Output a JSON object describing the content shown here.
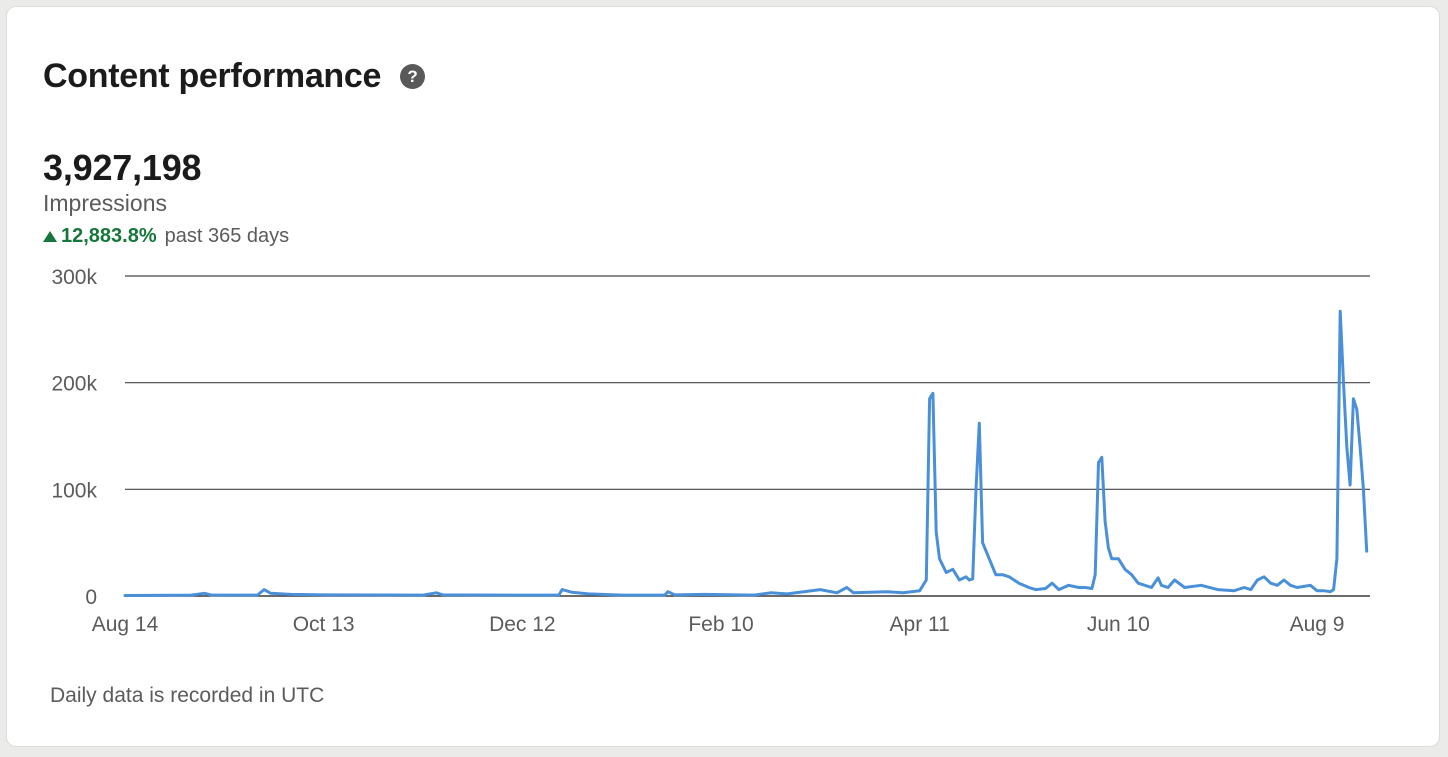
{
  "card": {
    "title": "Content performance",
    "help_icon": "help-circle-icon",
    "metric_value": "3,927,198",
    "metric_label": "Impressions",
    "change_value": "12,883.8%",
    "change_period": "past 365 days",
    "change_direction_icon": "triangle-up-icon",
    "footnote": "Daily data is recorded in UTC"
  },
  "colors": {
    "line": "#4a90d9",
    "positive": "#16773a",
    "grid": "#2e2e2e",
    "muted_text": "#5b5b5b"
  },
  "chart_data": {
    "type": "line",
    "title": "",
    "xlabel": "",
    "ylabel": "",
    "ylim": [
      0,
      300000
    ],
    "grid": true,
    "y_ticks": [
      {
        "value": 300000,
        "label": "300k"
      },
      {
        "value": 200000,
        "label": "200k"
      },
      {
        "value": 100000,
        "label": "100k"
      },
      {
        "value": 0,
        "label": "0"
      }
    ],
    "x_ticks": [
      "Aug 14",
      "Oct 13",
      "Dec 12",
      "Feb 10",
      "Apr 11",
      "Jun 10",
      "Aug 9"
    ],
    "x_tick_days": [
      0,
      60,
      120,
      180,
      240,
      300,
      360
    ],
    "series": [
      {
        "name": "",
        "points": [
          [
            0,
            500
          ],
          [
            20,
            800
          ],
          [
            24,
            2500
          ],
          [
            26,
            900
          ],
          [
            40,
            800
          ],
          [
            42,
            6000
          ],
          [
            44,
            2500
          ],
          [
            50,
            1500
          ],
          [
            60,
            1000
          ],
          [
            90,
            800
          ],
          [
            94,
            3000
          ],
          [
            96,
            1000
          ],
          [
            120,
            800
          ],
          [
            131,
            800
          ],
          [
            132,
            6000
          ],
          [
            135,
            3500
          ],
          [
            140,
            2000
          ],
          [
            150,
            800
          ],
          [
            163,
            800
          ],
          [
            164,
            4000
          ],
          [
            166,
            1000
          ],
          [
            175,
            1500
          ],
          [
            190,
            800
          ],
          [
            195,
            3000
          ],
          [
            200,
            2000
          ],
          [
            210,
            6000
          ],
          [
            215,
            3000
          ],
          [
            218,
            8000
          ],
          [
            220,
            3000
          ],
          [
            230,
            4000
          ],
          [
            235,
            3000
          ],
          [
            240,
            5000
          ],
          [
            242,
            15000
          ],
          [
            243,
            185000
          ],
          [
            244,
            190000
          ],
          [
            245,
            60000
          ],
          [
            246,
            35000
          ],
          [
            248,
            22000
          ],
          [
            250,
            25000
          ],
          [
            252,
            15000
          ],
          [
            254,
            18000
          ],
          [
            255,
            15000
          ],
          [
            256,
            16000
          ],
          [
            257,
            100000
          ],
          [
            258,
            162000
          ],
          [
            259,
            50000
          ],
          [
            261,
            35000
          ],
          [
            263,
            20000
          ],
          [
            265,
            20000
          ],
          [
            267,
            18000
          ],
          [
            270,
            12000
          ],
          [
            273,
            8000
          ],
          [
            275,
            6000
          ],
          [
            278,
            7000
          ],
          [
            280,
            12000
          ],
          [
            282,
            6000
          ],
          [
            285,
            10000
          ],
          [
            288,
            8000
          ],
          [
            290,
            8000
          ],
          [
            292,
            7000
          ],
          [
            293,
            20000
          ],
          [
            294,
            125000
          ],
          [
            295,
            130000
          ],
          [
            296,
            70000
          ],
          [
            297,
            45000
          ],
          [
            298,
            35000
          ],
          [
            300,
            35000
          ],
          [
            302,
            25000
          ],
          [
            304,
            20000
          ],
          [
            306,
            12000
          ],
          [
            308,
            10000
          ],
          [
            310,
            8000
          ],
          [
            312,
            17000
          ],
          [
            313,
            10000
          ],
          [
            315,
            8000
          ],
          [
            317,
            15000
          ],
          [
            320,
            8000
          ],
          [
            325,
            10000
          ],
          [
            330,
            6000
          ],
          [
            335,
            5000
          ],
          [
            338,
            8000
          ],
          [
            340,
            6000
          ],
          [
            342,
            15000
          ],
          [
            344,
            18000
          ],
          [
            346,
            12000
          ],
          [
            348,
            10000
          ],
          [
            350,
            15000
          ],
          [
            352,
            10000
          ],
          [
            354,
            8000
          ],
          [
            356,
            9000
          ],
          [
            358,
            10000
          ],
          [
            360,
            5000
          ],
          [
            362,
            5000
          ],
          [
            364,
            4000
          ],
          [
            365,
            6000
          ],
          [
            366,
            35000
          ],
          [
            367,
            267000
          ],
          [
            368,
            200000
          ],
          [
            369,
            140000
          ],
          [
            370,
            104000
          ],
          [
            371,
            185000
          ],
          [
            372,
            175000
          ],
          [
            373,
            140000
          ],
          [
            374,
            100000
          ],
          [
            375,
            42000
          ]
        ]
      }
    ]
  }
}
